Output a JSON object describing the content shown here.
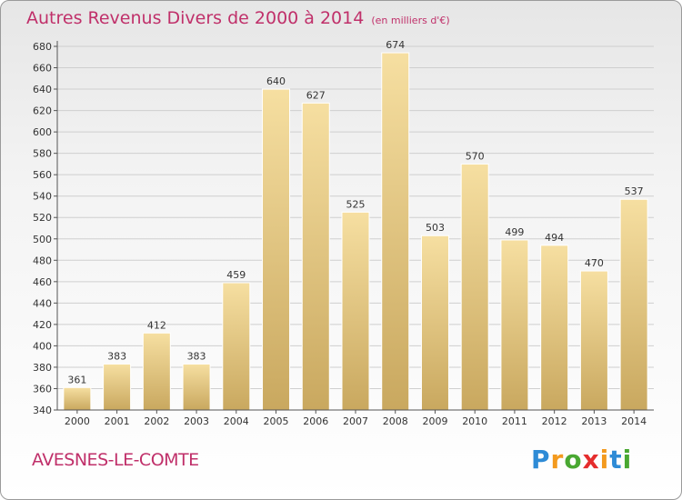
{
  "title": "Autres Revenus Divers de 2000 à 2014",
  "unit_note": "(en milliers d'€)",
  "place_name": "AVESNES-LE-COMTE",
  "logo": {
    "letters": [
      "P",
      "r",
      "o",
      "x",
      "i",
      "t",
      "i"
    ],
    "colors": [
      "#2e8bd6",
      "#f39a1e",
      "#49a832",
      "#e52d2d",
      "#f39a1e",
      "#2e8bd6",
      "#49a832"
    ]
  },
  "colors": {
    "bar_top": "#f6dfa1",
    "bar_bottom": "#c9a85f",
    "grid": "#cfcfcf",
    "axis": "#555555",
    "title": "#c0306a"
  },
  "chart_data": {
    "type": "bar",
    "categories": [
      "2000",
      "2001",
      "2002",
      "2003",
      "2004",
      "2005",
      "2006",
      "2007",
      "2008",
      "2009",
      "2010",
      "2011",
      "2012",
      "2013",
      "2014"
    ],
    "values": [
      361,
      383,
      412,
      383,
      459,
      640,
      627,
      525,
      674,
      503,
      570,
      499,
      494,
      470,
      537
    ],
    "ylim": [
      340,
      680
    ],
    "yticks": [
      340,
      360,
      380,
      400,
      420,
      440,
      460,
      480,
      500,
      520,
      540,
      560,
      580,
      600,
      620,
      640,
      660,
      680
    ],
    "grid": true,
    "legend": "none"
  }
}
